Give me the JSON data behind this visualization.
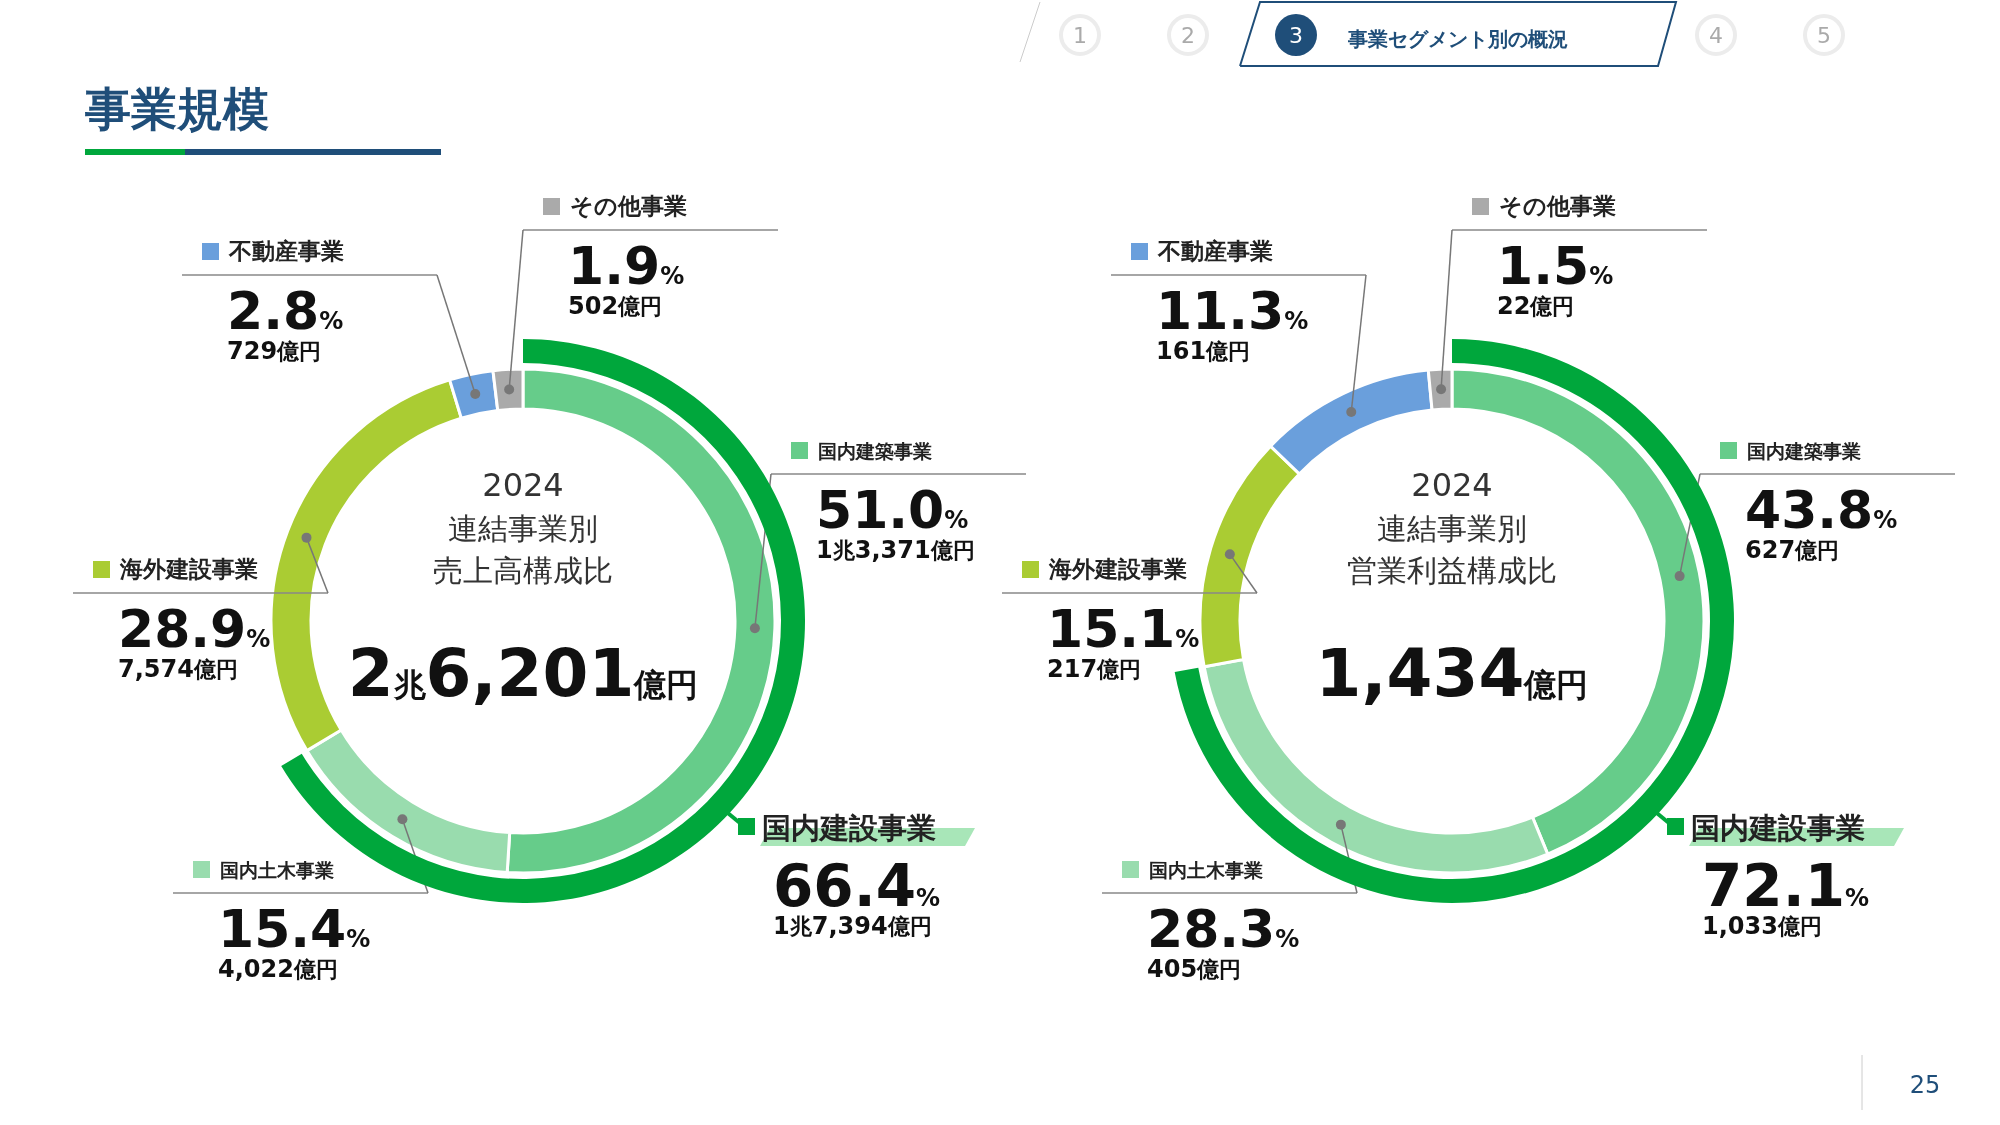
{
  "chart_data": [
    {
      "type": "donut",
      "title": "2024",
      "subtitle": "連結事業別",
      "categories": [
        "国内建築事業",
        "国内土木事業",
        "海外建設事業",
        "不動産事業",
        "その他事業"
      ],
      "series": [
        {
          "colors": [
            "#66cc8a",
            "#99dcae",
            "#aacc33",
            "#6a9fdc",
            "#aaaaaa"
          ],
          "values": [
            51.0,
            15.4,
            28.9,
            2.8,
            1.9
          ],
          "value_labels": [
            "51.0%",
            "15.4%",
            "28.9%",
            "2.8%",
            "1.9%"
          ]
        },
        {
          "name": "国内建設事業",
          "color": "#00a73c",
          "values": [
            66.4,
            null,
            null,
            null,
            null
          ],
          "value_labels": [
            "66.4%",
            null,
            null,
            null,
            null
          ]
        }
      ],
      "legend": "left",
      "annotations": [
        "1兆3,371億円",
        "4,022億円",
        "7,574億円",
        "729億円",
        "502億円",
        "1兆7,394億円",
        "2兆6,201億円",
        "売上高構成比",
        "事業規模",
        "1",
        "2",
        "3",
        "事業セグメント別の概況",
        "4",
        "5",
        "25"
      ]
    },
    {
      "type": "donut",
      "title": "2024",
      "subtitle": "連結事業別",
      "categories": [
        "国内建築事業",
        "国内土木事業",
        "海外建設事業",
        "不動産事業",
        "その他事業"
      ],
      "series": [
        {
          "colors": [
            "#66cc8a",
            "#99dcae",
            "#aacc33",
            "#6a9fdc",
            "#aaaaaa"
          ],
          "values": [
            43.8,
            28.3,
            15.1,
            11.3,
            1.5
          ],
          "value_labels": [
            "43.8%",
            "28.3%",
            "15.1%",
            "11.3%",
            "1.5%"
          ]
        },
        {
          "name": "国内建設事業",
          "color": "#00a73c",
          "values": [
            72.1,
            null,
            null,
            null,
            null
          ],
          "value_labels": [
            "72.1%",
            null,
            null,
            null,
            null
          ]
        }
      ],
      "legend": "left",
      "annotations": [
        "627億円",
        "405億円",
        "217億円",
        "161億円",
        "22億円",
        "1,033億円",
        "1,434億円",
        "営業利益構成比"
      ]
    }
  ]
}
